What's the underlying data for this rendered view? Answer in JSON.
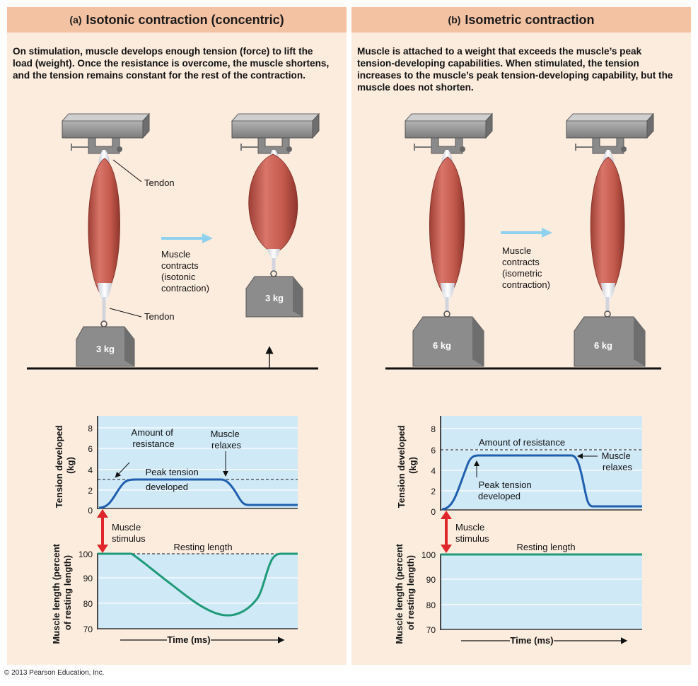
{
  "panel_a": {
    "letter": "(a)",
    "title": "Isotonic contraction (concentric)",
    "description": "On stimulation, muscle develops enough tension (force) to lift the load (weight). Once the resistance is overcome, the muscle shortens, and the tension remains constant for the rest of the contraction.",
    "tendon_top_label": "Tendon",
    "tendon_bottom_label": "Tendon",
    "contraction_label": [
      "Muscle",
      "contracts",
      "(isotonic",
      "contraction)"
    ],
    "weight_before": "3 kg",
    "weight_after": "3 kg",
    "graph": {
      "tension_ylabel": [
        "Tension developed",
        "(kg)"
      ],
      "tension_ticks": [
        "0",
        "2",
        "4",
        "6",
        "8"
      ],
      "resistance_label": [
        "Amount of",
        "resistance"
      ],
      "relaxes_label": [
        "Muscle",
        "relaxes"
      ],
      "peak_label": [
        "Peak tension",
        "developed"
      ],
      "stimulus_label": [
        "Muscle",
        "stimulus"
      ],
      "length_ylabel": [
        "Muscle length (percent",
        "of resting length)"
      ],
      "length_ticks": [
        "70",
        "80",
        "90",
        "100"
      ],
      "resting_label": "Resting length",
      "time_label": "Time (ms)"
    }
  },
  "panel_b": {
    "letter": "(b)",
    "title": "Isometric contraction",
    "description": "Muscle is attached to a weight that exceeds the muscle’s peak tension-developing capabilities. When stimulated, the tension increases to the muscle’s peak tension-developing capability, but the muscle does not shorten.",
    "contraction_label": [
      "Muscle",
      "contracts",
      "(isometric",
      "contraction)"
    ],
    "weight_before": "6 kg",
    "weight_after": "6 kg",
    "graph": {
      "tension_ylabel": [
        "Tension developed",
        "(kg)"
      ],
      "tension_ticks": [
        "0",
        "2",
        "4",
        "6",
        "8"
      ],
      "resistance_label": "Amount of resistance",
      "relaxes_label": [
        "Muscle",
        "relaxes"
      ],
      "peak_label": [
        "Peak tension",
        "developed"
      ],
      "stimulus_label": [
        "Muscle",
        "stimulus"
      ],
      "length_ylabel": [
        "Muscle length (percent",
        "of resting length)"
      ],
      "length_ticks": [
        "70",
        "80",
        "90",
        "100"
      ],
      "resting_label": "Resting length",
      "time_label": "Time (ms)"
    }
  },
  "copyright": "© 2013 Pearson Education, Inc.",
  "colors": {
    "panel_bg": "#fcecde",
    "header_bg": "#f3c2a3",
    "graph_bg": "#cfe9f7",
    "tension_curve": "#1f5fae",
    "length_curve": "#1e9a78",
    "stimulus_arrow": "#e0262a",
    "motion_arrow": "#8fd1ee",
    "muscle": "#c65a4c",
    "weight": "#8c8c8c"
  }
}
